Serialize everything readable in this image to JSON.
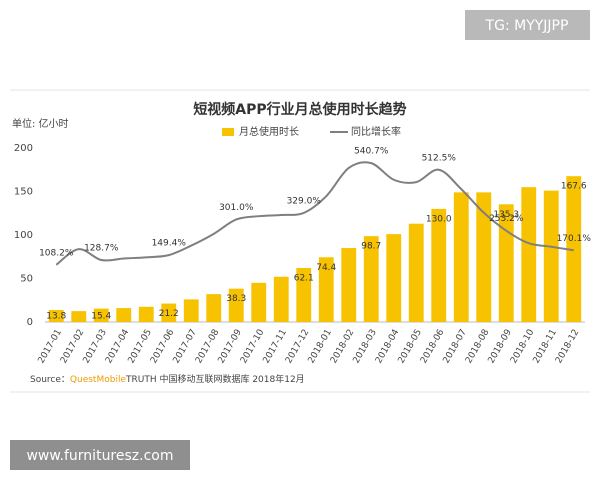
{
  "watermarks": [
    "TG: MYYJJPP",
    "www.furnituresz.com"
  ],
  "chart_data": {
    "type": "bar",
    "title": "短视频APP行业月总使用时长趋势",
    "y_unit": "单位: 亿小时",
    "categories": [
      "2017-01",
      "2017-02",
      "2017-03",
      "2017-04",
      "2017-05",
      "2017-06",
      "2017-07",
      "2017-08",
      "2017-09",
      "2017-10",
      "2017-11",
      "2017-12",
      "2018-01",
      "2018-02",
      "2018-03",
      "2018-04",
      "2018-05",
      "2018-06",
      "2018-07",
      "2018-08",
      "2018-09",
      "2018-10",
      "2018-11",
      "2018-12"
    ],
    "series": [
      {
        "name": "月总使用时长",
        "type": "bar",
        "color": "#f7c200",
        "values": [
          13.8,
          12.5,
          15.4,
          16,
          17.5,
          21.2,
          26,
          32,
          38.3,
          45,
          52,
          62.1,
          74.4,
          85,
          98.7,
          101,
          113,
          130.0,
          149,
          149,
          135.3,
          155,
          151,
          167.6
        ],
        "value_labels": [
          "13.8",
          null,
          "15.4",
          null,
          null,
          "21.2",
          null,
          null,
          "38.3",
          null,
          null,
          "62.1",
          "74.4",
          null,
          "98.7",
          null,
          null,
          "130.0",
          null,
          null,
          "135.3",
          null,
          null,
          "167.6"
        ]
      },
      {
        "name": "同比增长率",
        "type": "line",
        "color": "#7f7f7f",
        "axis": "y2",
        "values": [
          108.2,
          175,
          128.7,
          135,
          140,
          149.4,
          190,
          240,
          301.0,
          315,
          320,
          329.0,
          400,
          520,
          540.7,
          470,
          460,
          512.5,
          430,
          330,
          253.2,
          200,
          185,
          170.1
        ],
        "value_labels": [
          "108.2%",
          null,
          "128.7%",
          null,
          null,
          "149.4%",
          null,
          null,
          "301.0%",
          null,
          null,
          "329.0%",
          null,
          null,
          "540.7%",
          null,
          null,
          "512.5%",
          null,
          null,
          "253.2%",
          null,
          null,
          "170.1%"
        ]
      }
    ],
    "ylim": [
      0,
      200
    ],
    "yticks": [
      0,
      50,
      100,
      150,
      200
    ],
    "y2lim": [
      -135,
      605
    ],
    "grid": false,
    "legend": "top",
    "source": {
      "label": "Source：",
      "brand": "QuestMobile",
      "text": "TRUTH 中国移动互联网数据库 2018年12月"
    }
  }
}
